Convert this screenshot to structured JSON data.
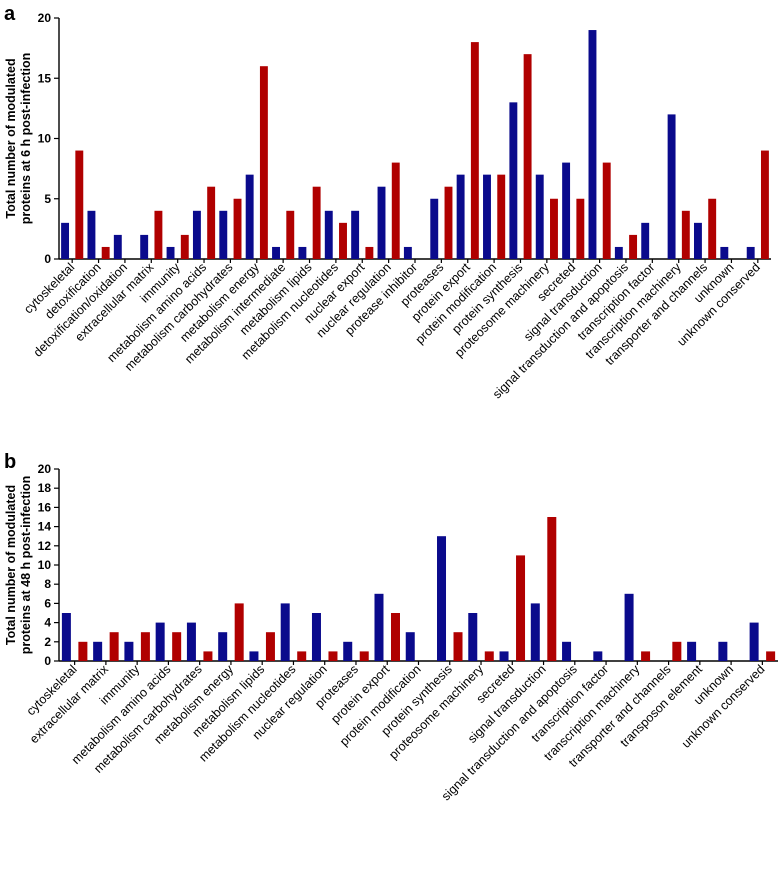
{
  "colors": {
    "series_a": "#0a0a8c",
    "series_b": "#b00000",
    "axis": "#000000"
  },
  "chart_data": [
    {
      "panel": "a",
      "type": "bar",
      "ylabel_line1": "Total number of modulated",
      "ylabel_line2": "proteins at 6 h post-infection",
      "ylim": [
        0,
        20
      ],
      "yticks": [
        0,
        5,
        10,
        15,
        20
      ],
      "grid": false,
      "categories": [
        "cytoskeletal",
        "detoxification",
        "detoxification/oxidation",
        "extracellular matrix",
        "immunity",
        "metabolism amino acids",
        "metabolism carbohydrates",
        "metabolism energy",
        "metabolism intermediate",
        "metabolism lipids",
        "metabolism nucleotides",
        "nuclear export",
        "nuclear regulation",
        "protease inhibitor",
        "proteases",
        "protein export",
        "protein modification",
        "protein synthesis",
        "proteosome machinery",
        "secreted",
        "signal transduction",
        "signal transduction and apoptosis",
        "transcription factor",
        "transcription machinery",
        "transporter and channels",
        "unknown",
        "unknown conserved"
      ],
      "series": [
        {
          "values": [
            3,
            4,
            2,
            2,
            1,
            4,
            4,
            7,
            1,
            1,
            4,
            4,
            6,
            1,
            5,
            7,
            7,
            13,
            7,
            8,
            19,
            1,
            3,
            12,
            3,
            1,
            1
          ]
        },
        {
          "values": [
            9,
            1,
            0,
            4,
            2,
            6,
            5,
            16,
            4,
            6,
            3,
            1,
            8,
            0,
            6,
            18,
            7,
            17,
            5,
            5,
            8,
            2,
            0,
            4,
            5,
            0,
            9
          ]
        }
      ]
    },
    {
      "panel": "b",
      "type": "bar",
      "ylabel_line1": "Total number of modulated",
      "ylabel_line2": "proteins at 48 h post-infection",
      "ylim": [
        0,
        20
      ],
      "yticks": [
        0,
        2,
        4,
        6,
        8,
        10,
        12,
        14,
        16,
        18,
        20
      ],
      "grid": false,
      "categories": [
        "cytoskeletal",
        "extracellular matrix",
        "immunity",
        "metabolism amino acids",
        "metabolism carbohydrates",
        "metabolism energy",
        "metabolism lipids",
        "metabolism nucleotides",
        "nuclear regulation",
        "proteases",
        "protein export",
        "protein modification",
        "protein synthesis",
        "proteosome machinery",
        "secreted",
        "signal transduction",
        "signal transduction and apoptosis",
        "transcription factor",
        "transcription machinery",
        "transporter and channels",
        "transposon element",
        "unknown",
        "unknown conserved"
      ],
      "series": [
        {
          "values": [
            5,
            2,
            2,
            4,
            4,
            3,
            1,
            6,
            5,
            2,
            7,
            3,
            13,
            5,
            1,
            6,
            2,
            1,
            7,
            0,
            2,
            2,
            4
          ]
        },
        {
          "values": [
            2,
            3,
            3,
            3,
            1,
            6,
            3,
            1,
            1,
            1,
            5,
            0,
            3,
            1,
            11,
            15,
            0,
            0,
            1,
            2,
            0,
            0,
            1
          ]
        }
      ]
    }
  ]
}
